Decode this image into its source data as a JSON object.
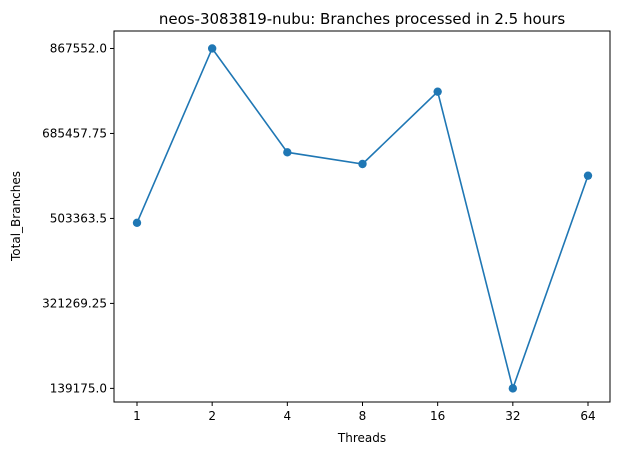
{
  "chart_data": {
    "type": "line",
    "title": "neos-3083819-nubu: Branches processed in 2.5 hours",
    "xlabel": "Threads",
    "ylabel": "Total_Branches",
    "categories": [
      "1",
      "2",
      "4",
      "8",
      "16",
      "32",
      "64"
    ],
    "series": [
      {
        "values": [
          494000,
          867552,
          645000,
          620000,
          775000,
          139175,
          595000
        ],
        "color": "#1f77b4"
      }
    ],
    "yticks": [
      139175.0,
      321269.25,
      503363.5,
      685457.75,
      867552.0
    ],
    "ytick_labels": [
      "139175.0",
      "321269.25",
      "503363.5",
      "685457.75",
      "867552.0"
    ],
    "ylim": [
      110000,
      905000
    ],
    "grid": false,
    "legend": "none",
    "marker": "circle"
  }
}
